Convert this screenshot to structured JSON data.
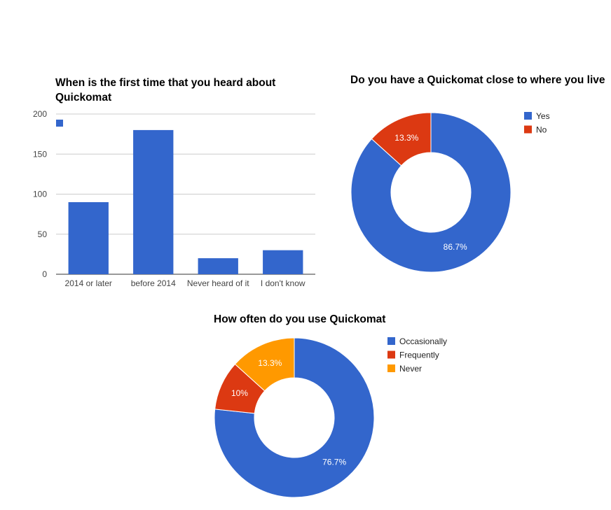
{
  "chart_data": [
    {
      "type": "bar",
      "title": "When is the first time that you heard about Quickomat",
      "categories": [
        "2014 or later",
        "before 2014",
        "Never heard of it",
        "I don't know"
      ],
      "values": [
        90,
        180,
        20,
        30
      ],
      "ylim": [
        0,
        200
      ],
      "yticks": [
        "0",
        "50",
        "100",
        "150",
        "200"
      ],
      "grid": true,
      "legend_position": "top-left",
      "color": "#3366cc"
    },
    {
      "type": "pie",
      "donut": true,
      "title": "Do you have a Quickomat close to where you live",
      "slices": [
        {
          "name": "Yes",
          "value": 86.7,
          "label": "86.7%",
          "color": "#3366cc"
        },
        {
          "name": "No",
          "value": 13.3,
          "label": "13.3%",
          "color": "#dc3912"
        }
      ],
      "legend_position": "right"
    },
    {
      "type": "pie",
      "donut": true,
      "title": "How often do you use Quickomat",
      "slices": [
        {
          "name": "Occasionally",
          "value": 76.7,
          "label": "76.7%",
          "color": "#3366cc"
        },
        {
          "name": "Frequently",
          "value": 10,
          "label": "10%",
          "color": "#dc3912"
        },
        {
          "name": "Never",
          "value": 13.3,
          "label": "13.3%",
          "color": "#ff9900"
        }
      ],
      "legend_position": "right"
    }
  ]
}
